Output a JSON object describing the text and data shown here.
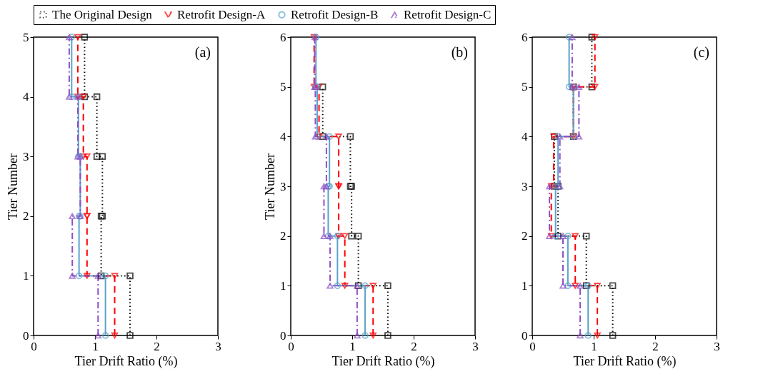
{
  "chart_data": [
    {
      "type": "line",
      "xlabel": "Tier Drift Ratio (%)",
      "ylabel": "Tier Number",
      "annotations": [
        "(a)"
      ],
      "xlim": [
        0,
        3
      ],
      "xticks": [
        0,
        1,
        2,
        3
      ],
      "ylim": [
        0,
        5
      ],
      "yticks": [
        0,
        1,
        2,
        3,
        4,
        5
      ],
      "grid": false,
      "legend": "top",
      "series": [
        {
          "name": "The Original Design",
          "color": "#000000",
          "marker": "square",
          "line_style": "dotted",
          "x": [
            1.57,
            1.57,
            1.1,
            1.1,
            1.12,
            1.12,
            1.03,
            1.03,
            0.83,
            0.83
          ],
          "values": [
            0,
            1,
            1,
            2,
            2,
            3,
            3,
            4,
            4,
            5
          ]
        },
        {
          "name": "Retrofit Design-A",
          "color": "#ff0000",
          "marker": "triangle-down",
          "line_style": "dashed",
          "x": [
            1.32,
            1.32,
            0.87,
            0.87,
            0.87,
            0.87,
            0.81,
            0.81,
            0.72,
            0.72
          ],
          "values": [
            0,
            1,
            1,
            2,
            2,
            3,
            3,
            4,
            4,
            5
          ]
        },
        {
          "name": "Retrofit Design-B",
          "color": "#5ba3cc",
          "marker": "circle",
          "line_style": "solid",
          "x": [
            1.17,
            1.17,
            0.74,
            0.74,
            0.76,
            0.76,
            0.73,
            0.73,
            0.62,
            0.62
          ],
          "values": [
            0,
            1,
            1,
            2,
            2,
            3,
            3,
            4,
            4,
            5
          ]
        },
        {
          "name": "Retrofit Design-C",
          "color": "#8e4fc8",
          "marker": "triangle-up",
          "line_style": "dashdot",
          "x": [
            1.05,
            1.05,
            0.63,
            0.63,
            0.76,
            0.76,
            0.72,
            0.72,
            0.58,
            0.58
          ],
          "values": [
            0,
            1,
            1,
            2,
            2,
            3,
            3,
            4,
            4,
            5
          ]
        }
      ]
    },
    {
      "type": "line",
      "xlabel": "Tier Drift Ratio (%)",
      "ylabel": "Tier Number",
      "annotations": [
        "(b)"
      ],
      "xlim": [
        0,
        3
      ],
      "xticks": [
        0,
        1,
        2,
        3
      ],
      "ylim": [
        0,
        6
      ],
      "yticks": [
        0,
        1,
        2,
        3,
        4,
        5,
        6
      ],
      "grid": false,
      "series": [
        {
          "color": "#000000",
          "marker": "square",
          "line_style": "dotted",
          "x": [
            1.58,
            1.58,
            1.1,
            1.1,
            0.99,
            0.99,
            0.97,
            0.97,
            0.52,
            0.52
          ],
          "values": [
            0,
            1,
            1,
            2,
            2,
            3,
            3,
            4,
            4,
            5
          ]
        },
        {
          "color": "#ff0000",
          "marker": "triangle-down",
          "line_style": "dashed",
          "x": [
            1.34,
            1.34,
            0.88,
            0.88,
            0.78,
            0.78,
            0.78,
            0.78,
            0.46,
            0.46,
            0.38,
            0.38
          ],
          "values": [
            0,
            1,
            1,
            2,
            2,
            3,
            3,
            4,
            4,
            5,
            5,
            6
          ]
        },
        {
          "color": "#5ba3cc",
          "marker": "circle",
          "line_style": "solid",
          "x": [
            1.21,
            1.21,
            0.76,
            0.76,
            0.61,
            0.61,
            0.63,
            0.63,
            0.43,
            0.43,
            0.41,
            0.41
          ],
          "values": [
            0,
            1,
            1,
            2,
            2,
            3,
            3,
            4,
            4,
            5,
            5,
            6
          ]
        },
        {
          "color": "#8e4fc8",
          "marker": "triangle-up",
          "line_style": "dashdot",
          "x": [
            1.08,
            1.08,
            0.64,
            0.64,
            0.54,
            0.54,
            0.58,
            0.58,
            0.4,
            0.4,
            0.39,
            0.39
          ],
          "values": [
            0,
            1,
            1,
            2,
            2,
            3,
            3,
            4,
            4,
            5,
            5,
            6
          ]
        }
      ]
    },
    {
      "type": "line",
      "xlabel": "Tier Drift Ratio (%)",
      "annotations": [
        "(c)"
      ],
      "xlim": [
        0,
        3
      ],
      "xticks": [
        0,
        1,
        2,
        3
      ],
      "ylim": [
        0,
        6
      ],
      "yticks": [
        0,
        1,
        2,
        3,
        4,
        5,
        6
      ],
      "grid": false,
      "series": [
        {
          "color": "#000000",
          "marker": "square",
          "line_style": "dotted",
          "x": [
            1.31,
            1.31,
            0.88,
            0.88,
            0.42,
            0.42,
            0.36,
            0.36,
            0.67,
            0.67,
            0.97,
            0.97
          ],
          "values": [
            0,
            1,
            1,
            2,
            2,
            3,
            3,
            4,
            4,
            5,
            5,
            6
          ]
        },
        {
          "color": "#ff0000",
          "marker": "triangle-down",
          "line_style": "dashed",
          "x": [
            1.06,
            1.06,
            0.7,
            0.7,
            0.31,
            0.31,
            0.35,
            0.35,
            0.67,
            0.67,
            1.02,
            1.02
          ],
          "values": [
            0,
            1,
            1,
            2,
            2,
            3,
            3,
            4,
            4,
            5,
            5,
            6
          ]
        },
        {
          "color": "#5ba3cc",
          "marker": "circle",
          "line_style": "solid",
          "x": [
            0.91,
            0.91,
            0.58,
            0.58,
            0.38,
            0.38,
            0.42,
            0.42,
            0.67,
            0.67,
            0.6,
            0.6
          ],
          "values": [
            0,
            1,
            1,
            2,
            2,
            3,
            3,
            4,
            4,
            5,
            5,
            6
          ]
        },
        {
          "color": "#8e4fc8",
          "marker": "triangle-up",
          "line_style": "dashdot",
          "x": [
            0.78,
            0.78,
            0.5,
            0.5,
            0.28,
            0.28,
            0.45,
            0.45,
            0.76,
            0.76,
            0.65,
            0.65
          ],
          "values": [
            0,
            1,
            1,
            2,
            2,
            3,
            3,
            4,
            4,
            5,
            5,
            6
          ]
        }
      ]
    }
  ]
}
